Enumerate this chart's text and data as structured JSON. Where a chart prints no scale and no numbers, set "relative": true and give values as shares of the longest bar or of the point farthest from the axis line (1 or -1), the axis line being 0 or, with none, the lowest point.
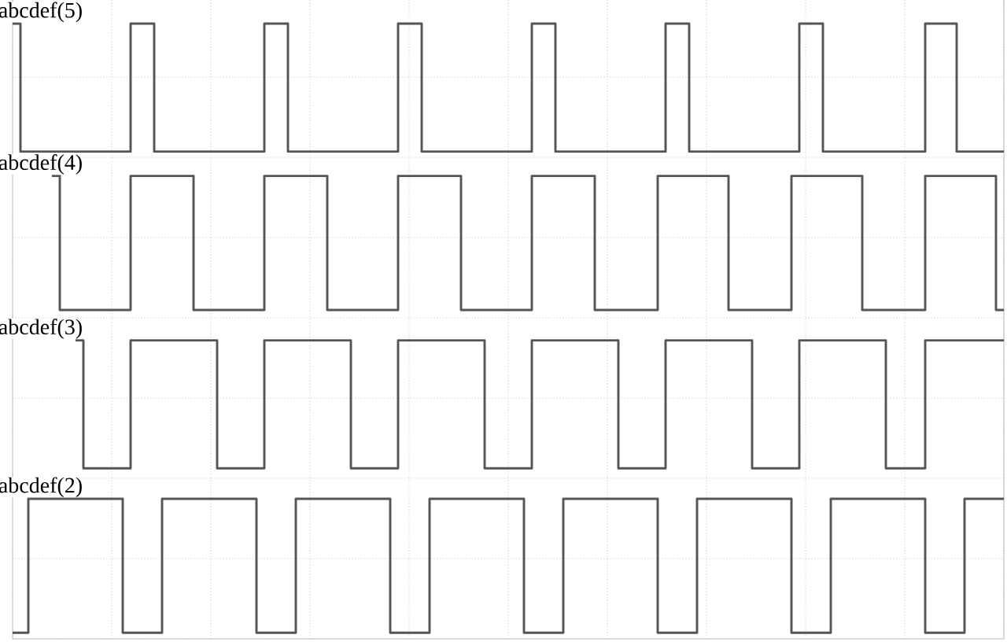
{
  "chart_data": {
    "type": "step",
    "relative": true,
    "grid": true,
    "marker": "none",
    "line_style": "solid",
    "categories": [
      null,
      null,
      null,
      null,
      null,
      null,
      null,
      null,
      null,
      null,
      null,
      null,
      null,
      null,
      null,
      null,
      null,
      null,
      null,
      null,
      null,
      null,
      null,
      null,
      null,
      null,
      null,
      null,
      null,
      null,
      null,
      null,
      null,
      null,
      null,
      null,
      null,
      null,
      null,
      null,
      null,
      null,
      null,
      null,
      null,
      null,
      null,
      null,
      null,
      null,
      null,
      null,
      null,
      null,
      null,
      null,
      null,
      null,
      null,
      null,
      null,
      null,
      null,
      null,
      null,
      null,
      null,
      null,
      null,
      null,
      null,
      null,
      null,
      null,
      null,
      null,
      null,
      null,
      null,
      null,
      null,
      null,
      null,
      null,
      null,
      null,
      null,
      null,
      null,
      null,
      null,
      null,
      null,
      null,
      null,
      null,
      null,
      null,
      null,
      null,
      null,
      null,
      null,
      null,
      null,
      null,
      null,
      null,
      null,
      null,
      null,
      null,
      null,
      null,
      null,
      null,
      null,
      null,
      null,
      null,
      null,
      null,
      null,
      null,
      null,
      null,
      null
    ],
    "series": [
      {
        "name": "abcdef(5)",
        "color": "#555555",
        "values": [
          1,
          0.79,
          0.79,
          0.79,
          0.79,
          0.79,
          0.79,
          0.79,
          0.79,
          0.79,
          0.79,
          0.79,
          0.79,
          0.79,
          0.79,
          1,
          1,
          1,
          0.79,
          0.79,
          0.79,
          0.79,
          0.79,
          0.79,
          0.79,
          0.79,
          0.79,
          0.79,
          0.79,
          0.79,
          0.79,
          0.79,
          1,
          1,
          1,
          0.79,
          0.79,
          0.79,
          0.79,
          0.79,
          0.79,
          0.79,
          0.79,
          0.79,
          0.79,
          0.79,
          0.79,
          0.79,
          0.79,
          1,
          1,
          1,
          0.79,
          0.79,
          0.79,
          0.79,
          0.79,
          0.79,
          0.79,
          0.79,
          0.79,
          0.79,
          0.79,
          0.79,
          0.79,
          0.79,
          1,
          1,
          1,
          0.79,
          0.79,
          0.79,
          0.79,
          0.79,
          0.79,
          0.79,
          0.79,
          0.79,
          0.79,
          0.79,
          0.79,
          0.79,
          0.79,
          1,
          1,
          1,
          0.79,
          0.79,
          0.79,
          0.79,
          0.79,
          0.79,
          0.79,
          0.79,
          0.79,
          0.79,
          0.79,
          0.79,
          0.79,
          0.79,
          1,
          1,
          1,
          0.79,
          0.79,
          0.79,
          0.79,
          0.79,
          0.79,
          0.79,
          0.79,
          0.79,
          0.79,
          0.79,
          0.79,
          0.79,
          1,
          1,
          1,
          1,
          0.79,
          0.79,
          0.79,
          0.79,
          0.79,
          0.79,
          0.79
        ]
      },
      {
        "name": "abcdef(4)",
        "color": "#555555",
        "values": [
          null,
          null,
          null,
          null,
          null,
          0.75,
          0.53,
          0.53,
          0.53,
          0.53,
          0.53,
          0.53,
          0.53,
          0.53,
          0.53,
          0.75,
          0.75,
          0.75,
          0.75,
          0.75,
          0.75,
          0.75,
          0.75,
          0.53,
          0.53,
          0.53,
          0.53,
          0.53,
          0.53,
          0.53,
          0.53,
          0.53,
          0.75,
          0.75,
          0.75,
          0.75,
          0.75,
          0.75,
          0.75,
          0.75,
          0.53,
          0.53,
          0.53,
          0.53,
          0.53,
          0.53,
          0.53,
          0.53,
          0.53,
          0.75,
          0.75,
          0.75,
          0.75,
          0.75,
          0.75,
          0.75,
          0.75,
          0.53,
          0.53,
          0.53,
          0.53,
          0.53,
          0.53,
          0.53,
          0.53,
          0.53,
          0.75,
          0.75,
          0.75,
          0.75,
          0.75,
          0.75,
          0.75,
          0.75,
          0.53,
          0.53,
          0.53,
          0.53,
          0.53,
          0.53,
          0.53,
          0.53,
          0.75,
          0.75,
          0.75,
          0.75,
          0.75,
          0.75,
          0.75,
          0.75,
          0.75,
          0.53,
          0.53,
          0.53,
          0.53,
          0.53,
          0.53,
          0.53,
          0.53,
          0.75,
          0.75,
          0.75,
          0.75,
          0.75,
          0.75,
          0.75,
          0.75,
          0.75,
          0.53,
          0.53,
          0.53,
          0.53,
          0.53,
          0.53,
          0.53,
          0.53,
          0.75,
          0.75,
          0.75,
          0.75,
          0.75,
          0.75,
          0.75,
          0.75,
          0.75,
          0.53,
          0.53
        ]
      },
      {
        "name": "abcdef(3)",
        "color": "#555555",
        "values": [
          null,
          null,
          null,
          null,
          null,
          null,
          null,
          null,
          0.48,
          0.27,
          0.27,
          0.27,
          0.27,
          0.27,
          0.27,
          0.48,
          0.48,
          0.48,
          0.48,
          0.48,
          0.48,
          0.48,
          0.48,
          0.48,
          0.48,
          0.48,
          0.27,
          0.27,
          0.27,
          0.27,
          0.27,
          0.27,
          0.48,
          0.48,
          0.48,
          0.48,
          0.48,
          0.48,
          0.48,
          0.48,
          0.48,
          0.48,
          0.48,
          0.27,
          0.27,
          0.27,
          0.27,
          0.27,
          0.27,
          0.48,
          0.48,
          0.48,
          0.48,
          0.48,
          0.48,
          0.48,
          0.48,
          0.48,
          0.48,
          0.48,
          0.27,
          0.27,
          0.27,
          0.27,
          0.27,
          0.27,
          0.48,
          0.48,
          0.48,
          0.48,
          0.48,
          0.48,
          0.48,
          0.48,
          0.48,
          0.48,
          0.48,
          0.27,
          0.27,
          0.27,
          0.27,
          0.27,
          0.27,
          0.48,
          0.48,
          0.48,
          0.48,
          0.48,
          0.48,
          0.48,
          0.48,
          0.48,
          0.48,
          0.48,
          0.27,
          0.27,
          0.27,
          0.27,
          0.27,
          0.27,
          0.48,
          0.48,
          0.48,
          0.48,
          0.48,
          0.48,
          0.48,
          0.48,
          0.48,
          0.48,
          0.48,
          0.27,
          0.27,
          0.27,
          0.27,
          0.27,
          0.48,
          0.48,
          0.48,
          0.48,
          0.48,
          0.48,
          0.48,
          0.48,
          0.48,
          0.48,
          0.48
        ]
      },
      {
        "name": "abcdef(2)",
        "color": "#555555",
        "values": [
          0,
          0,
          0.22,
          0.22,
          0.22,
          0.22,
          0.22,
          0.22,
          0.22,
          0.22,
          0.22,
          0.22,
          0.22,
          0.22,
          0,
          0,
          0,
          0,
          0,
          0.22,
          0.22,
          0.22,
          0.22,
          0.22,
          0.22,
          0.22,
          0.22,
          0.22,
          0.22,
          0.22,
          0.22,
          0,
          0,
          0,
          0,
          0,
          0.22,
          0.22,
          0.22,
          0.22,
          0.22,
          0.22,
          0.22,
          0.22,
          0.22,
          0.22,
          0.22,
          0.22,
          0,
          0,
          0,
          0,
          0,
          0.22,
          0.22,
          0.22,
          0.22,
          0.22,
          0.22,
          0.22,
          0.22,
          0.22,
          0.22,
          0.22,
          0.22,
          0,
          0,
          0,
          0,
          0,
          0.22,
          0.22,
          0.22,
          0.22,
          0.22,
          0.22,
          0.22,
          0.22,
          0.22,
          0.22,
          0.22,
          0.22,
          0,
          0,
          0,
          0,
          0,
          0.22,
          0.22,
          0.22,
          0.22,
          0.22,
          0.22,
          0.22,
          0.22,
          0.22,
          0.22,
          0.22,
          0.22,
          0,
          0,
          0,
          0,
          0,
          0.22,
          0.22,
          0.22,
          0.22,
          0.22,
          0.22,
          0.22,
          0.22,
          0.22,
          0.22,
          0.22,
          0.22,
          0,
          0,
          0,
          0,
          0,
          0.22,
          0.22,
          0.22,
          0.22,
          0.22,
          0.22
        ]
      }
    ]
  }
}
